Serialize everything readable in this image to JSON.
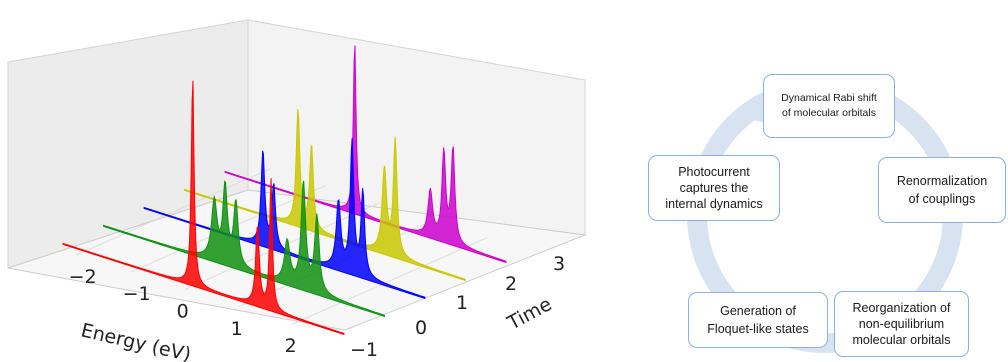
{
  "chart_data": {
    "type": "area",
    "title": "",
    "xlabel": "Energy (eV)",
    "ylabel": "Time",
    "xticks": [
      "−2",
      "−1",
      "0",
      "1",
      "2"
    ],
    "yticks": [
      "−1",
      "0",
      "1",
      "2",
      "3"
    ],
    "xlim": [
      -2.4,
      2.8
    ],
    "ylim": [
      -1,
      3.8
    ],
    "series": [
      {
        "time": 0,
        "color": "#ff0000",
        "peaks": [
          {
            "energy": 0.0,
            "height": 1.0,
            "width": 0.03
          },
          {
            "energy": 1.2,
            "height": 0.38,
            "width": 0.04
          },
          {
            "energy": 1.45,
            "height": 0.62,
            "width": 0.03
          }
        ]
      },
      {
        "time": 1,
        "color": "#109010",
        "peaks": [
          {
            "energy": -0.35,
            "height": 0.28,
            "width": 0.06
          },
          {
            "energy": -0.15,
            "height": 0.36,
            "width": 0.05
          },
          {
            "energy": 0.05,
            "height": 0.3,
            "width": 0.05
          },
          {
            "energy": 1.0,
            "height": 0.2,
            "width": 0.06
          },
          {
            "energy": 1.3,
            "height": 0.5,
            "width": 0.05
          },
          {
            "energy": 1.55,
            "height": 0.36,
            "width": 0.05
          }
        ]
      },
      {
        "time": 2,
        "color": "#0000ff",
        "peaks": [
          {
            "energy": -0.2,
            "height": 0.45,
            "width": 0.04
          },
          {
            "energy": 0.0,
            "height": 0.3,
            "width": 0.04
          },
          {
            "energy": 1.2,
            "height": 0.32,
            "width": 0.05
          },
          {
            "energy": 1.45,
            "height": 0.62,
            "width": 0.04
          },
          {
            "energy": 1.65,
            "height": 0.4,
            "width": 0.04
          }
        ]
      },
      {
        "time": 3,
        "color": "#c8c800",
        "peaks": [
          {
            "energy": -0.3,
            "height": 0.55,
            "width": 0.04
          },
          {
            "energy": -0.05,
            "height": 0.4,
            "width": 0.04
          },
          {
            "energy": 1.3,
            "height": 0.4,
            "width": 0.05
          },
          {
            "energy": 1.5,
            "height": 0.55,
            "width": 0.04
          }
        ]
      },
      {
        "time": 4,
        "color": "#cc00cc",
        "peaks": [
          {
            "energy": 0.0,
            "height": 0.82,
            "width": 0.03
          },
          {
            "energy": 1.4,
            "height": 0.22,
            "width": 0.05
          },
          {
            "energy": 1.65,
            "height": 0.42,
            "width": 0.04
          },
          {
            "energy": 1.82,
            "height": 0.45,
            "width": 0.04
          }
        ]
      }
    ]
  },
  "cycle": {
    "ring_color": "#d8e3f2",
    "border_color": "#8fb0d6",
    "steps": [
      {
        "id": "rabi",
        "lines": [
          "Dynamical Rabi shift",
          "of molecular orbitals"
        ]
      },
      {
        "id": "renorm",
        "lines": [
          "Renormalization",
          "of couplings"
        ]
      },
      {
        "id": "reorg",
        "lines": [
          "Reorganization of",
          "non-equilibrium",
          "molecular orbitals"
        ]
      },
      {
        "id": "floquet",
        "lines": [
          "Generation of",
          "Floquet-like states"
        ]
      },
      {
        "id": "photo",
        "lines": [
          "Photocurrent",
          "captures the",
          "internal dynamics"
        ]
      }
    ]
  }
}
